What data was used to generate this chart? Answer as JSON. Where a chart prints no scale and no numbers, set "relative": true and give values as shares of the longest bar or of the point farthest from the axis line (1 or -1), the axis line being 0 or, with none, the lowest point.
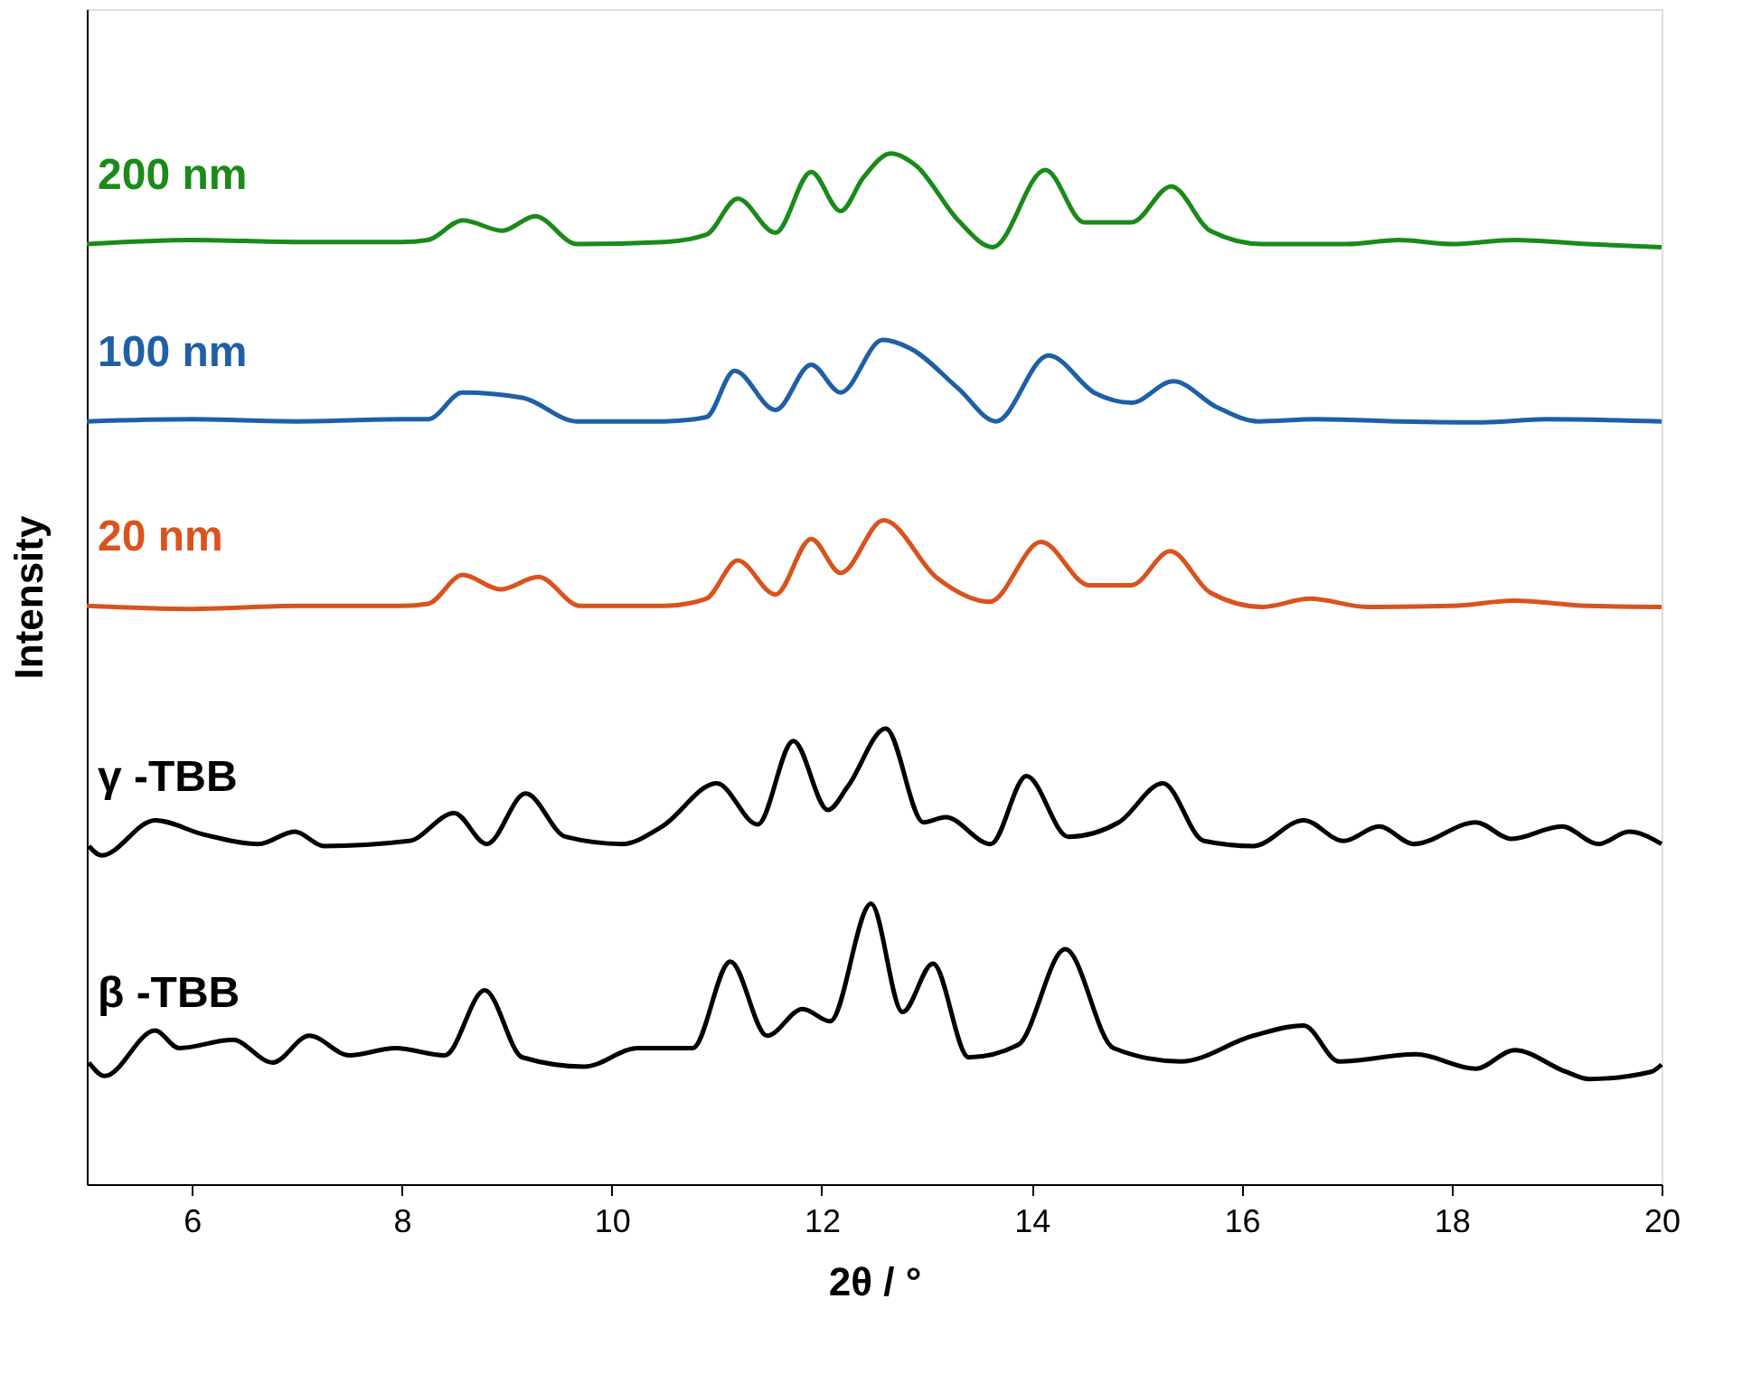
{
  "chart_data": {
    "type": "line",
    "xlabel": "2θ / °",
    "ylabel": "Intensity",
    "relative": true,
    "xlim": [
      5,
      20
    ],
    "xticks": [
      6,
      8,
      10,
      12,
      14,
      16,
      18,
      20
    ],
    "grid": false,
    "legend": false,
    "marker": "none",
    "line_style": "solid",
    "tick_labels": "x",
    "series": [
      {
        "name": "200 nm",
        "color": "#1a8a1a",
        "x": [
          5,
          6,
          7,
          8,
          8.25,
          8.58,
          8.96,
          9.27,
          9.67,
          10.5,
          10.9,
          11.2,
          11.56,
          11.9,
          12.18,
          12.4,
          12.66,
          12.9,
          13.3,
          13.63,
          14.13,
          14.5,
          14.95,
          15.33,
          15.7,
          16.2,
          17,
          17.5,
          18,
          18.6,
          19.3,
          20
        ],
        "values": [
          0.912,
          0.916,
          0.914,
          0.914,
          0.916,
          0.935,
          0.925,
          0.939,
          0.912,
          0.914,
          0.921,
          0.956,
          0.923,
          0.982,
          0.944,
          0.977,
          1.0,
          0.988,
          0.935,
          0.909,
          0.984,
          0.933,
          0.933,
          0.968,
          0.925,
          0.912,
          0.912,
          0.916,
          0.912,
          0.916,
          0.912,
          0.909
        ]
      },
      {
        "name": "100 nm",
        "color": "#1f5fa6",
        "x": [
          5,
          6,
          7,
          8,
          8.25,
          8.58,
          9.15,
          9.67,
          10.5,
          10.9,
          11.17,
          11.56,
          11.9,
          12.18,
          12.58,
          12.84,
          13.3,
          13.66,
          14.16,
          14.61,
          14.95,
          15.35,
          15.76,
          16.16,
          16.7,
          17.5,
          18.3,
          18.9,
          20
        ],
        "values": [
          0.74,
          0.742,
          0.74,
          0.742,
          0.742,
          0.768,
          0.763,
          0.74,
          0.74,
          0.744,
          0.789,
          0.751,
          0.795,
          0.768,
          0.819,
          0.811,
          0.772,
          0.74,
          0.804,
          0.767,
          0.758,
          0.779,
          0.754,
          0.74,
          0.742,
          0.74,
          0.739,
          0.742,
          0.74
        ]
      },
      {
        "name": "20 nm",
        "color": "#d9531e",
        "x": [
          5,
          6,
          7,
          8,
          8.25,
          8.58,
          8.94,
          9.3,
          9.7,
          10.5,
          10.9,
          11.2,
          11.56,
          11.9,
          12.18,
          12.59,
          13.1,
          13.6,
          14.09,
          14.55,
          14.95,
          15.32,
          15.7,
          16.2,
          16.65,
          17.2,
          18,
          18.6,
          19.3,
          20
        ],
        "values": [
          0.561,
          0.558,
          0.561,
          0.561,
          0.563,
          0.591,
          0.577,
          0.589,
          0.561,
          0.561,
          0.568,
          0.605,
          0.572,
          0.626,
          0.593,
          0.644,
          0.588,
          0.565,
          0.623,
          0.581,
          0.581,
          0.614,
          0.574,
          0.56,
          0.568,
          0.56,
          0.561,
          0.566,
          0.561,
          0.56
        ]
      },
      {
        "name": "γ -TBB",
        "color": "#000000",
        "x": [
          5.02,
          5.14,
          5.65,
          6.12,
          6.64,
          6.98,
          7.26,
          8.07,
          8.5,
          8.81,
          9.18,
          9.56,
          10.1,
          10.48,
          11.0,
          11.39,
          11.73,
          12.06,
          12.25,
          12.61,
          12.97,
          13.18,
          13.61,
          13.95,
          14.35,
          14.83,
          15.25,
          15.64,
          16.11,
          16.59,
          16.97,
          17.31,
          17.64,
          18.23,
          18.57,
          19.05,
          19.4,
          19.69,
          20
        ],
        "values": [
          0.328,
          0.319,
          0.353,
          0.339,
          0.33,
          0.342,
          0.328,
          0.333,
          0.36,
          0.33,
          0.379,
          0.337,
          0.33,
          0.347,
          0.389,
          0.349,
          0.43,
          0.363,
          0.386,
          0.442,
          0.351,
          0.356,
          0.33,
          0.396,
          0.337,
          0.351,
          0.389,
          0.333,
          0.328,
          0.353,
          0.333,
          0.347,
          0.33,
          0.351,
          0.335,
          0.347,
          0.33,
          0.342,
          0.33
        ]
      },
      {
        "name": "β -TBB",
        "color": "#000000",
        "x": [
          5.02,
          5.17,
          5.65,
          5.88,
          6.39,
          6.77,
          7.12,
          7.5,
          7.94,
          8.41,
          8.79,
          9.15,
          9.74,
          10.25,
          10.77,
          11.13,
          11.48,
          11.82,
          12.08,
          12.47,
          12.77,
          13.06,
          13.4,
          13.87,
          14.32,
          14.78,
          15.42,
          16.11,
          16.59,
          16.93,
          17.66,
          18.23,
          18.6,
          19.09,
          19.31,
          19.9,
          20
        ],
        "values": [
          0.118,
          0.105,
          0.149,
          0.132,
          0.14,
          0.118,
          0.144,
          0.125,
          0.132,
          0.125,
          0.188,
          0.123,
          0.114,
          0.132,
          0.132,
          0.216,
          0.144,
          0.17,
          0.158,
          0.272,
          0.167,
          0.214,
          0.123,
          0.135,
          0.228,
          0.132,
          0.119,
          0.144,
          0.154,
          0.119,
          0.126,
          0.112,
          0.13,
          0.109,
          0.102,
          0.109,
          0.116
        ]
      }
    ]
  }
}
